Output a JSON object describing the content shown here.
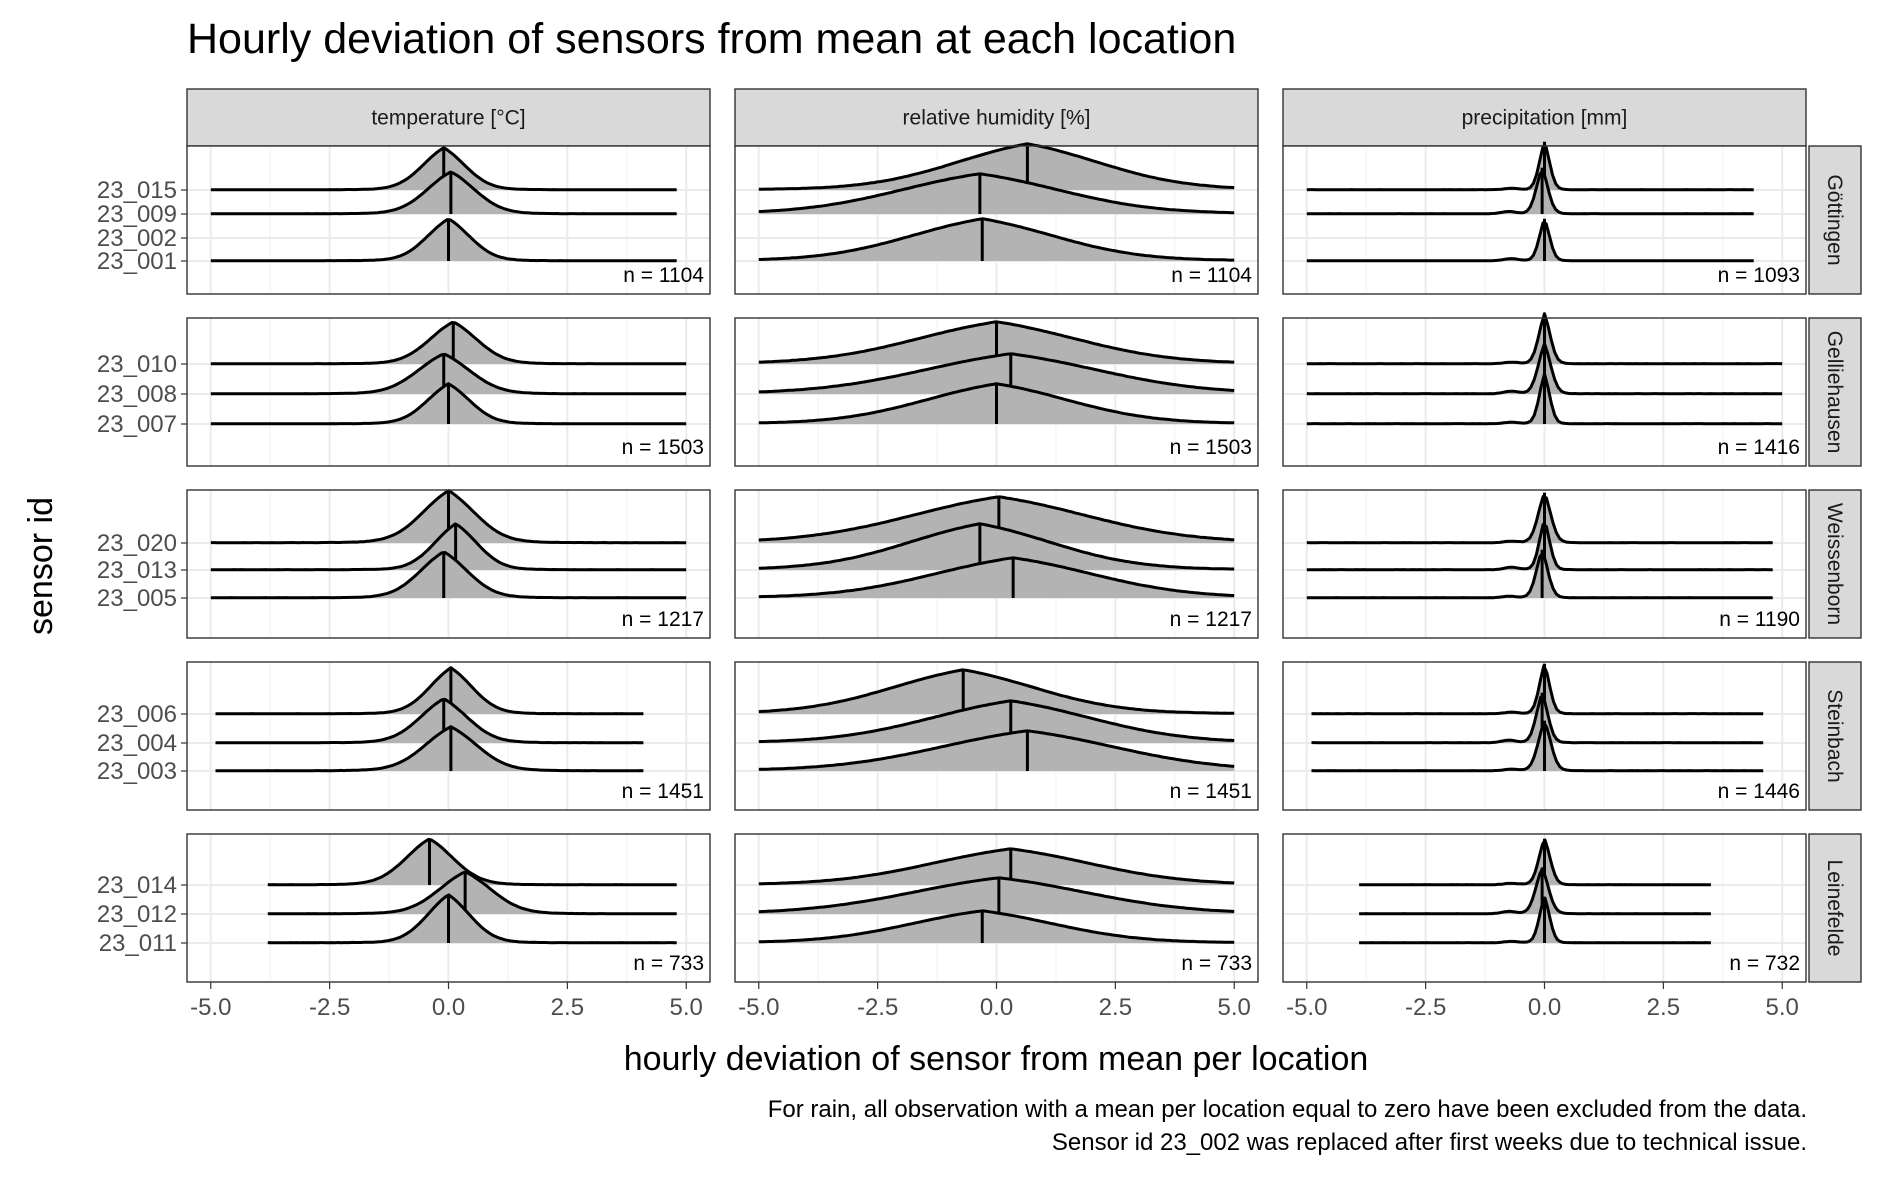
{
  "chart_data": {
    "type": "ridgeline-density",
    "title": "Hourly deviation of sensors from mean at each location",
    "xlabel": "hourly deviation of sensor from mean per location",
    "ylabel": "sensor id",
    "caption": [
      "For rain, all observation with a mean per location equal to zero have been excluded from the data.",
      "Sensor id 23_002 was replaced after first weeks due to technical issue."
    ],
    "xlim": [
      -5.5,
      5.5
    ],
    "x_ticks": [
      -5.0,
      -2.5,
      0.0,
      2.5,
      5.0
    ],
    "x_tick_labels": [
      "-5.0",
      "-2.5",
      "0.0",
      "2.5",
      "5.0"
    ],
    "grid": true,
    "fill_color": "#b3b3b3",
    "line_color": "#000000",
    "strip_fill": "#d9d9d9",
    "columns": [
      "temperature [°C]",
      "relative humidity [%]",
      "precipitation [mm]"
    ],
    "rows": [
      {
        "location": "Göttingen",
        "sensors": [
          "23_015",
          "23_009",
          "23_002",
          "23_001"
        ],
        "n": [
          "n = 1104",
          "n = 1104",
          "n = 1093"
        ],
        "medians": [
          [
            -0.1,
            0.05,
            null,
            0.0
          ],
          [
            0.65,
            -0.35,
            null,
            -0.3
          ],
          [
            0.0,
            -0.05,
            null,
            0.0
          ]
        ],
        "ranges": [
          [
            [
              -5,
              4.8
            ],
            [
              -5,
              4.8
            ],
            null,
            [
              -5,
              4.8
            ]
          ],
          [
            [
              -5,
              5
            ],
            [
              -5,
              5
            ],
            null,
            [
              -5,
              5
            ]
          ],
          [
            [
              -5,
              4.4
            ],
            [
              -5,
              4.4
            ],
            null,
            [
              -5,
              4.4
            ]
          ]
        ]
      },
      {
        "location": "Gelliehausen",
        "sensors": [
          "23_010",
          "23_008",
          "23_007"
        ],
        "n": [
          "n = 1503",
          "n = 1503",
          "n = 1416"
        ],
        "medians": [
          [
            0.1,
            -0.1,
            0.0
          ],
          [
            0.0,
            0.3,
            0.0
          ],
          [
            0.0,
            0.0,
            0.0
          ]
        ],
        "ranges": [
          [
            [
              -5,
              5
            ],
            [
              -5,
              5
            ],
            [
              -5,
              5
            ]
          ],
          [
            [
              -5,
              5
            ],
            [
              -5,
              5
            ],
            [
              -5,
              5
            ]
          ],
          [
            [
              -5,
              5
            ],
            [
              -5,
              5
            ],
            [
              -5,
              5
            ]
          ]
        ]
      },
      {
        "location": "Weissenborn",
        "sensors": [
          "23_020",
          "23_013",
          "23_005"
        ],
        "n": [
          "n = 1217",
          "n = 1217",
          "n = 1190"
        ],
        "medians": [
          [
            0.0,
            0.15,
            -0.1
          ],
          [
            0.05,
            -0.35,
            0.35
          ],
          [
            0.0,
            0.0,
            -0.05
          ]
        ],
        "ranges": [
          [
            [
              -5,
              5
            ],
            [
              -5,
              5
            ],
            [
              -5,
              5
            ]
          ],
          [
            [
              -5,
              5
            ],
            [
              -5,
              5
            ],
            [
              -5,
              5
            ]
          ],
          [
            [
              -5,
              4.8
            ],
            [
              -5,
              4.8
            ],
            [
              -5,
              4.8
            ]
          ]
        ]
      },
      {
        "location": "Steinbach",
        "sensors": [
          "23_006",
          "23_004",
          "23_003"
        ],
        "n": [
          "n = 1451",
          "n = 1451",
          "n = 1446"
        ],
        "medians": [
          [
            0.05,
            -0.1,
            0.05
          ],
          [
            -0.7,
            0.3,
            0.65
          ],
          [
            0.0,
            -0.05,
            0.0
          ]
        ],
        "ranges": [
          [
            [
              -4.9,
              4.1
            ],
            [
              -4.9,
              4.1
            ],
            [
              -4.9,
              4.1
            ]
          ],
          [
            [
              -5,
              5
            ],
            [
              -5,
              5
            ],
            [
              -5,
              5
            ]
          ],
          [
            [
              -4.9,
              4.6
            ],
            [
              -4.9,
              4.6
            ],
            [
              -4.9,
              4.6
            ]
          ]
        ]
      },
      {
        "location": "Leinefelde",
        "sensors": [
          "23_014",
          "23_012",
          "23_011"
        ],
        "n": [
          "n = 733",
          "n = 733",
          "n = 732"
        ],
        "medians": [
          [
            -0.4,
            0.35,
            0.0
          ],
          [
            0.3,
            0.05,
            -0.3
          ],
          [
            0.0,
            -0.05,
            0.0
          ]
        ],
        "ranges": [
          [
            [
              -3.8,
              4.8
            ],
            [
              -3.8,
              4.8
            ],
            [
              -3.8,
              4.8
            ]
          ],
          [
            [
              -5,
              5
            ],
            [
              -5,
              5
            ],
            [
              -5,
              5
            ]
          ],
          [
            [
              -3.9,
              3.5
            ],
            [
              -3.9,
              3.5
            ],
            [
              -3.9,
              3.5
            ]
          ]
        ]
      }
    ]
  }
}
